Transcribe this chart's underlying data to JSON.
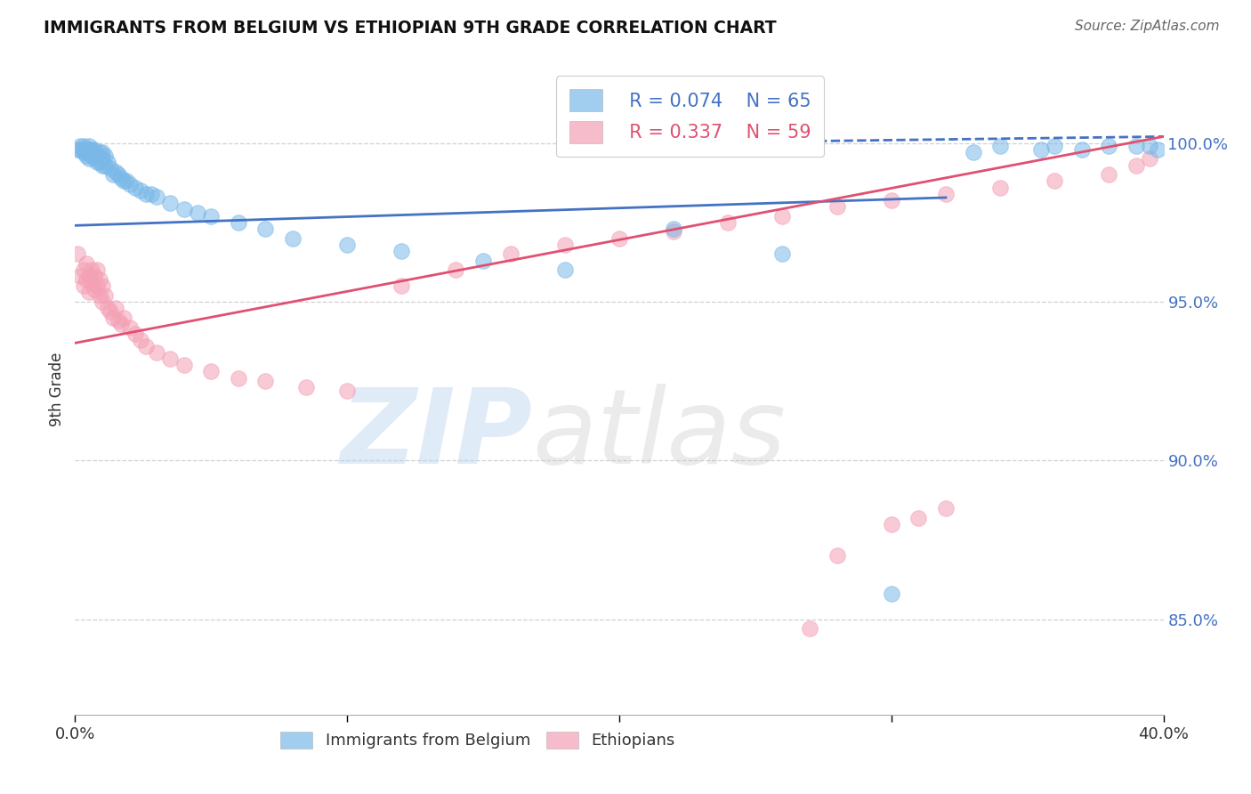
{
  "title": "IMMIGRANTS FROM BELGIUM VS ETHIOPIAN 9TH GRADE CORRELATION CHART",
  "source": "Source: ZipAtlas.com",
  "ylabel": "9th Grade",
  "ytick_values": [
    0.85,
    0.9,
    0.95,
    1.0
  ],
  "xlim": [
    0.0,
    0.4
  ],
  "ylim": [
    0.82,
    1.025
  ],
  "legend_blue_r": "R = 0.074",
  "legend_blue_n": "N = 65",
  "legend_pink_r": "R = 0.337",
  "legend_pink_n": "N = 59",
  "blue_color": "#7ab8e8",
  "pink_color": "#f4a0b5",
  "line_blue": "#4472c4",
  "line_pink": "#e05070",
  "blue_scatter_x": [
    0.001,
    0.002,
    0.002,
    0.003,
    0.003,
    0.003,
    0.004,
    0.004,
    0.004,
    0.005,
    0.005,
    0.005,
    0.005,
    0.006,
    0.006,
    0.006,
    0.007,
    0.007,
    0.007,
    0.008,
    0.008,
    0.009,
    0.009,
    0.01,
    0.01,
    0.01,
    0.011,
    0.011,
    0.012,
    0.013,
    0.014,
    0.015,
    0.016,
    0.017,
    0.018,
    0.019,
    0.02,
    0.022,
    0.024,
    0.026,
    0.028,
    0.03,
    0.035,
    0.04,
    0.045,
    0.05,
    0.06,
    0.07,
    0.08,
    0.1,
    0.12,
    0.15,
    0.18,
    0.22,
    0.26,
    0.3,
    0.33,
    0.34,
    0.355,
    0.36,
    0.37,
    0.38,
    0.39,
    0.395,
    0.398
  ],
  "blue_scatter_y": [
    0.998,
    0.998,
    0.999,
    0.997,
    0.998,
    0.999,
    0.996,
    0.997,
    0.998,
    0.995,
    0.997,
    0.998,
    0.999,
    0.996,
    0.997,
    0.998,
    0.995,
    0.997,
    0.998,
    0.994,
    0.996,
    0.994,
    0.997,
    0.993,
    0.995,
    0.997,
    0.993,
    0.996,
    0.994,
    0.992,
    0.99,
    0.991,
    0.99,
    0.989,
    0.988,
    0.988,
    0.987,
    0.986,
    0.985,
    0.984,
    0.984,
    0.983,
    0.981,
    0.979,
    0.978,
    0.977,
    0.975,
    0.973,
    0.97,
    0.968,
    0.966,
    0.963,
    0.96,
    0.973,
    0.965,
    0.858,
    0.997,
    0.999,
    0.998,
    0.999,
    0.998,
    0.999,
    0.999,
    0.999,
    0.998
  ],
  "pink_scatter_x": [
    0.001,
    0.002,
    0.003,
    0.003,
    0.004,
    0.004,
    0.005,
    0.005,
    0.006,
    0.006,
    0.007,
    0.007,
    0.008,
    0.008,
    0.009,
    0.009,
    0.01,
    0.01,
    0.011,
    0.012,
    0.013,
    0.014,
    0.015,
    0.016,
    0.017,
    0.018,
    0.02,
    0.022,
    0.024,
    0.026,
    0.03,
    0.035,
    0.04,
    0.05,
    0.06,
    0.07,
    0.085,
    0.1,
    0.12,
    0.14,
    0.16,
    0.18,
    0.2,
    0.22,
    0.24,
    0.26,
    0.28,
    0.3,
    0.32,
    0.34,
    0.36,
    0.38,
    0.39,
    0.395,
    0.27,
    0.28,
    0.3,
    0.31,
    0.32
  ],
  "pink_scatter_y": [
    0.965,
    0.958,
    0.96,
    0.955,
    0.957,
    0.962,
    0.958,
    0.953,
    0.956,
    0.96,
    0.954,
    0.958,
    0.955,
    0.96,
    0.952,
    0.957,
    0.95,
    0.955,
    0.952,
    0.948,
    0.947,
    0.945,
    0.948,
    0.944,
    0.943,
    0.945,
    0.942,
    0.94,
    0.938,
    0.936,
    0.934,
    0.932,
    0.93,
    0.928,
    0.926,
    0.925,
    0.923,
    0.922,
    0.955,
    0.96,
    0.965,
    0.968,
    0.97,
    0.972,
    0.975,
    0.977,
    0.98,
    0.982,
    0.984,
    0.986,
    0.988,
    0.99,
    0.993,
    0.995,
    0.847,
    0.87,
    0.88,
    0.882,
    0.885
  ],
  "watermark_zip": "ZIP",
  "watermark_atlas": "atlas",
  "background_color": "#ffffff",
  "grid_color": "#d0d0d0"
}
